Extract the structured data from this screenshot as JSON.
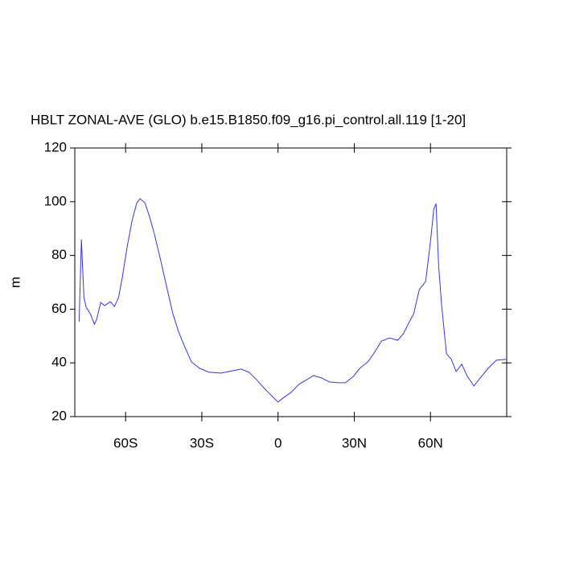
{
  "chart_data": {
    "type": "line",
    "title": "HBLT ZONAL-AVE (GLO) b.e15.B1850.f09_g16.pi_control.all.119 [1-20]",
    "ylabel": "m",
    "xlim": [
      -80,
      90
    ],
    "ylim": [
      20,
      120
    ],
    "xticks": [
      {
        "value": -60,
        "label": "60S"
      },
      {
        "value": -30,
        "label": "30S"
      },
      0,
      {
        "value": 30,
        "label": "30N"
      },
      {
        "value": 60,
        "label": "60N"
      }
    ],
    "yticks": [
      20,
      40,
      60,
      80,
      100,
      120
    ],
    "series": [
      {
        "color": "#3333ff",
        "x": [
          -78.3,
          -77.4,
          -76.4,
          -75.5,
          -73.9,
          -72.3,
          -71.4,
          -69.8,
          -68.2,
          -66,
          -64.4,
          -62.8,
          -61.3,
          -59.4,
          -57.5,
          -55.6,
          -54.3,
          -52.4,
          -50.5,
          -48.6,
          -46.1,
          -43.6,
          -41.4,
          -39.2,
          -36.6,
          -34.1,
          -30.9,
          -27.2,
          -22.4,
          -17.7,
          -14.5,
          -11.4,
          -8.2,
          -5.1,
          -1.9,
          0,
          1.9,
          5.1,
          8.2,
          11.4,
          13.9,
          17.1,
          20.2,
          23.4,
          26.5,
          29.7,
          32.2,
          35.4,
          37.6,
          40.7,
          43.9,
          47.1,
          49.3,
          51.2,
          53.4,
          55.6,
          58.1,
          60,
          61.3,
          62.2,
          63.2,
          64.4,
          66.3,
          68.2,
          70.1,
          72.3,
          74.5,
          77.1,
          79.6,
          82.7,
          85.9,
          89.7
        ],
        "values": [
          55.3,
          85.9,
          64.3,
          60.7,
          58.3,
          54.4,
          56.2,
          62.5,
          61.3,
          62.8,
          61,
          64.3,
          71.8,
          83.2,
          92.8,
          99.6,
          101.1,
          99.6,
          94.2,
          87.7,
          77.8,
          67.3,
          58.3,
          51.7,
          45.7,
          40.4,
          38,
          36.5,
          36.2,
          37.1,
          37.7,
          36.5,
          33.5,
          30.2,
          27.2,
          25.4,
          26.9,
          29,
          32,
          33.8,
          35.3,
          34.4,
          32.9,
          32.6,
          32.6,
          35,
          38,
          40.4,
          43.4,
          48.1,
          49.3,
          48.4,
          50.8,
          54.4,
          58.3,
          67.3,
          70.3,
          85.3,
          97.2,
          99.3,
          76.3,
          61.3,
          43.4,
          41.3,
          36.8,
          39.5,
          35,
          31.4,
          34.4,
          38,
          41,
          41.3
        ]
      }
    ]
  }
}
